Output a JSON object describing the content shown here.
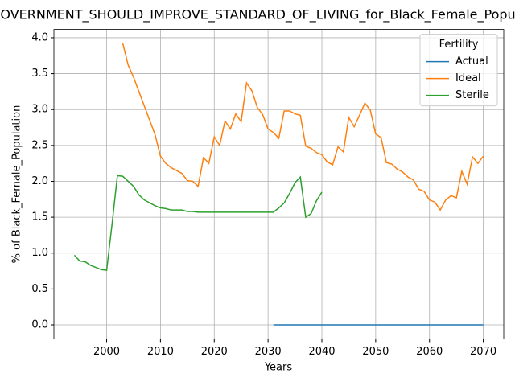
{
  "chart_data": {
    "type": "line",
    "title": "GOVERNMENT_SHOULD_IMPROVE_STANDARD_OF_LIVING_for_Black_Female_Population",
    "xlabel": "Years",
    "ylabel": "% of Black_Female_Population",
    "legend_title": "Fertility",
    "legend": "upper right",
    "grid": true,
    "x": [
      1994,
      1995,
      1996,
      1997,
      1998,
      1999,
      2000,
      2001,
      2002,
      2003,
      2004,
      2005,
      2006,
      2007,
      2008,
      2009,
      2010,
      2011,
      2012,
      2013,
      2014,
      2015,
      2016,
      2017,
      2018,
      2019,
      2020,
      2021,
      2022,
      2023,
      2024,
      2025,
      2026,
      2027,
      2028,
      2029,
      2030,
      2031,
      2032,
      2033,
      2034,
      2035,
      2036,
      2037,
      2038,
      2039,
      2040,
      2041,
      2042,
      2043,
      2044,
      2045,
      2046,
      2047,
      2048,
      2049,
      2050,
      2051,
      2052,
      2053,
      2054,
      2055,
      2056,
      2057,
      2058,
      2059,
      2060,
      2061,
      2062,
      2063,
      2064,
      2065,
      2066,
      2067,
      2068,
      2069,
      2070
    ],
    "series": [
      {
        "name": "Actual",
        "color": "#1f77b4",
        "values": [
          null,
          null,
          null,
          null,
          null,
          null,
          null,
          null,
          null,
          null,
          null,
          null,
          null,
          null,
          null,
          null,
          null,
          null,
          null,
          null,
          null,
          null,
          null,
          null,
          null,
          null,
          null,
          null,
          null,
          null,
          null,
          null,
          null,
          null,
          null,
          null,
          null,
          0,
          0,
          0,
          0,
          0,
          0,
          0,
          0,
          0,
          0,
          0,
          0,
          0,
          0,
          0,
          0,
          0,
          0,
          0,
          0,
          0,
          0,
          0,
          0,
          0,
          0,
          0,
          0,
          0,
          0,
          0,
          0,
          0,
          0,
          0,
          0,
          0,
          0,
          0,
          0
        ]
      },
      {
        "name": "Ideal",
        "color": "#ff7f0e",
        "values": [
          null,
          null,
          null,
          null,
          null,
          null,
          null,
          null,
          null,
          3.92,
          3.62,
          3.45,
          3.25,
          3.05,
          2.85,
          2.65,
          2.35,
          2.25,
          2.19,
          2.15,
          2.11,
          2.01,
          2.0,
          1.93,
          2.33,
          2.25,
          2.62,
          2.5,
          2.84,
          2.73,
          2.94,
          2.83,
          3.37,
          3.26,
          3.03,
          2.93,
          2.73,
          2.68,
          2.6,
          2.98,
          2.98,
          2.94,
          2.92,
          2.49,
          2.46,
          2.4,
          2.37,
          2.27,
          2.23,
          2.48,
          2.41,
          2.89,
          2.76,
          2.92,
          3.09,
          2.99,
          2.66,
          2.61,
          2.26,
          2.24,
          2.17,
          2.13,
          2.06,
          2.02,
          1.89,
          1.86,
          1.74,
          1.71,
          1.6,
          1.74,
          1.8,
          1.77,
          2.14,
          1.96,
          2.34,
          2.25,
          2.35
        ]
      },
      {
        "name": "Sterile",
        "color": "#2ca02c",
        "values": [
          0.97,
          0.89,
          0.88,
          0.83,
          0.8,
          0.77,
          0.76,
          1.4,
          2.08,
          2.07,
          2.0,
          1.93,
          1.81,
          1.74,
          1.7,
          1.66,
          1.63,
          1.62,
          1.6,
          1.6,
          1.6,
          1.58,
          1.58,
          1.57,
          1.57,
          1.57,
          1.57,
          1.57,
          1.57,
          1.57,
          1.57,
          1.57,
          1.57,
          1.57,
          1.57,
          1.57,
          1.57,
          1.57,
          1.63,
          1.7,
          1.83,
          1.98,
          2.06,
          1.5,
          1.55,
          1.73,
          1.85,
          null,
          null,
          null,
          null,
          null,
          null,
          null,
          null,
          null,
          null,
          null,
          null,
          null,
          null,
          null,
          null,
          null,
          null,
          null,
          null,
          null,
          null,
          null,
          null,
          null,
          null,
          null,
          null,
          null,
          null
        ]
      }
    ],
    "xlim": [
      1990.2,
      2073.8
    ],
    "xticks": [
      2000,
      2010,
      2020,
      2030,
      2040,
      2050,
      2060,
      2070
    ],
    "ylim": [
      -0.196,
      4.116
    ],
    "yticks": [
      {
        "value": 0,
        "label": "0.0"
      },
      0.5,
      {
        "value": 1,
        "label": "1.0"
      },
      1.5,
      {
        "value": 2,
        "label": "2.0"
      },
      2.5,
      {
        "value": 3,
        "label": "3.0"
      },
      3.5,
      {
        "value": 4,
        "label": "4.0"
      }
    ]
  }
}
